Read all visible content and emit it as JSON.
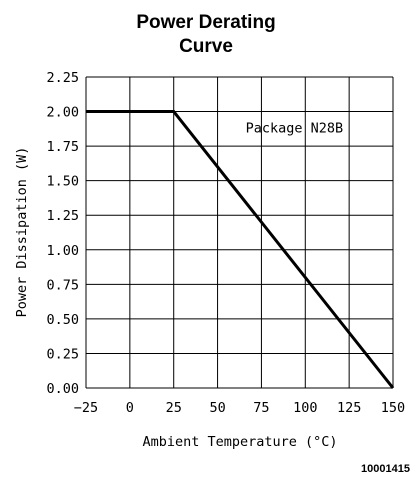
{
  "chart_data": {
    "type": "line",
    "title": [
      "Power Derating",
      "Curve"
    ],
    "xlabel": "Ambient Temperature (°C)",
    "ylabel": "Power Dissipation (W)",
    "xlim": [
      -25,
      150
    ],
    "ylim": [
      0,
      2.25
    ],
    "x_ticks": [
      "-25",
      "0",
      "25",
      "50",
      "75",
      "100",
      "125",
      "150"
    ],
    "y_ticks": [
      "0.00",
      "0.25",
      "0.50",
      "0.75",
      "1.00",
      "1.25",
      "1.50",
      "1.75",
      "2.00",
      "2.25"
    ],
    "grid": true,
    "series": [
      {
        "x": [
          -25,
          25,
          150
        ],
        "y": [
          2.0,
          2.0,
          0.0
        ]
      }
    ],
    "annotations": [
      {
        "text": "Package N28B",
        "x": 66,
        "y": 1.85
      }
    ],
    "figure_id": "10001415"
  }
}
